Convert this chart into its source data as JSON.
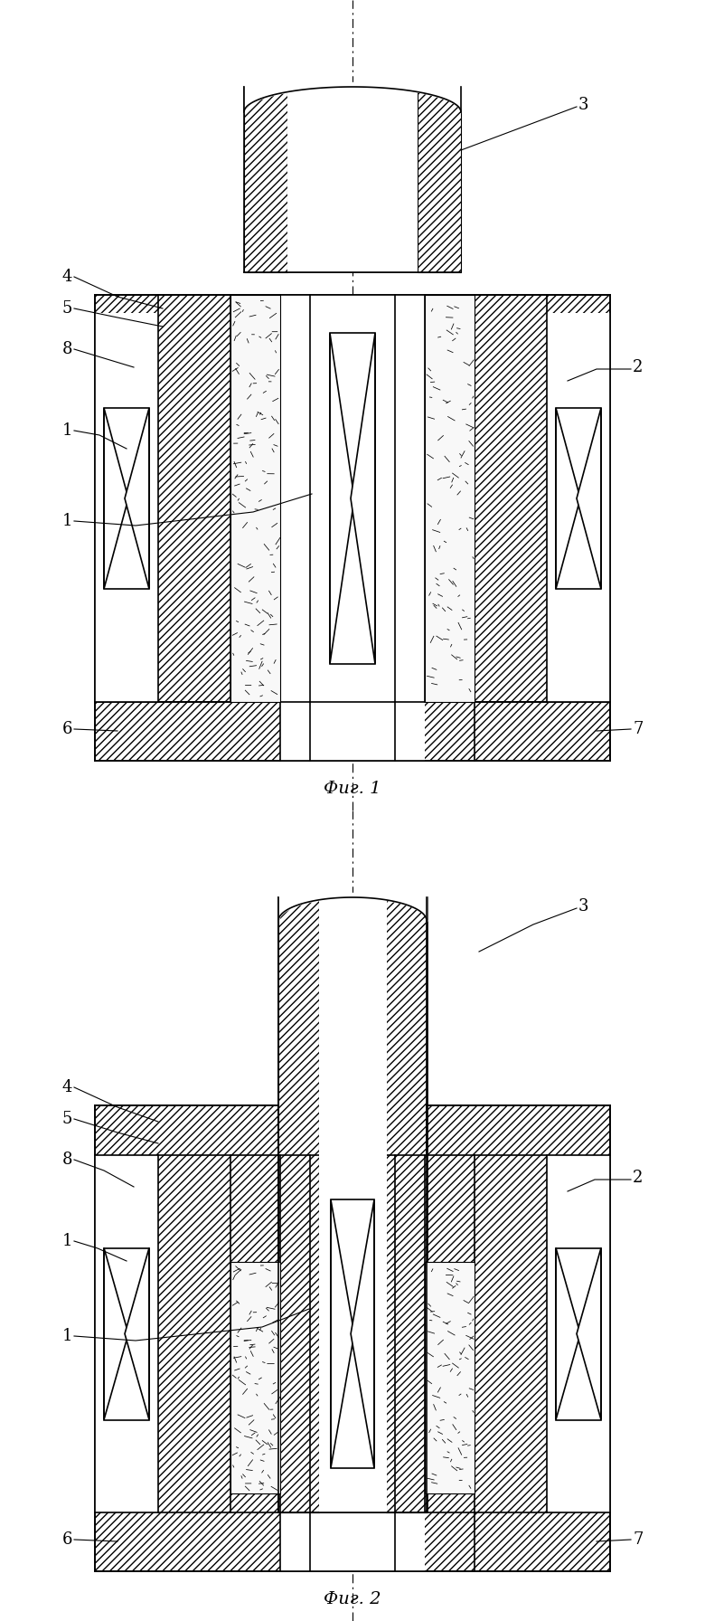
{
  "fig_width": 7.8,
  "fig_height": 17.92,
  "bg_color": "#ffffff",
  "fig1_caption": "Фиг. 1",
  "fig2_caption": "Фиг. 2",
  "label_fontsize": 13,
  "caption_fontsize": 14
}
